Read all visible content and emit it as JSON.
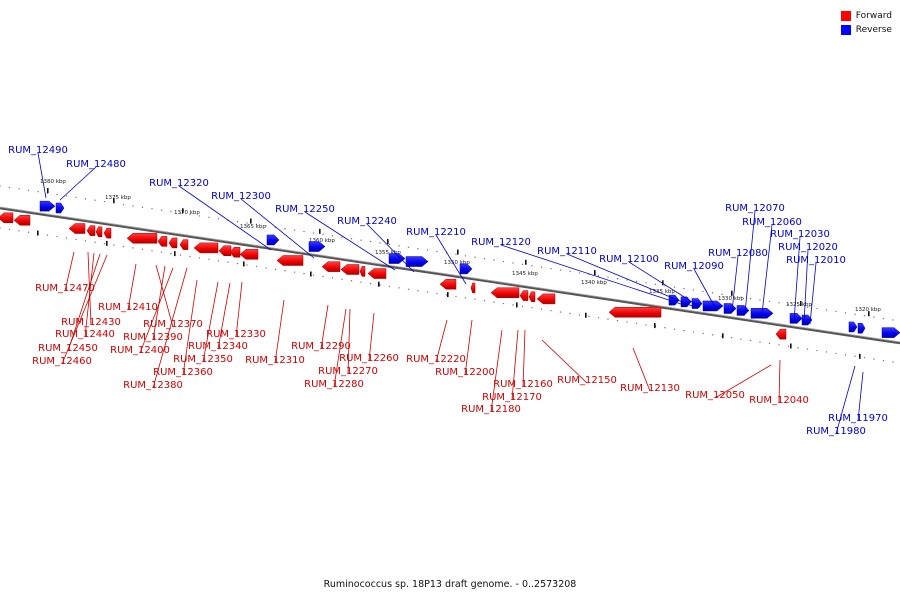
{
  "caption": "Ruminococcus sp. 18P13 draft genome. - 0..2573208",
  "legend": [
    {
      "label": "Forward",
      "color": "#ff0000"
    },
    {
      "label": "Reverse",
      "color": "#0000ff"
    }
  ],
  "colors": {
    "forward": "#ff0000",
    "reverse": "#0000ff",
    "backbone": "#888888"
  },
  "scale_labels": [
    "1380 kbp",
    "1375 kbp",
    "1370 kbp",
    "1365 kbp",
    "1360 kbp",
    "1355 kbp",
    "1350 kbp",
    "1345 kbp",
    "1340 kbp",
    "1335 kbp",
    "1330 kbp",
    "1325 kbp",
    "1320 kbp"
  ],
  "forward_genes": [
    "RUM_12470",
    "RUM_12410",
    "RUM_12430",
    "RUM_12370",
    "RUM_12440",
    "RUM_12390",
    "RUM_12330",
    "RUM_12450",
    "RUM_12400",
    "RUM_12340",
    "RUM_12460",
    "RUM_12350",
    "RUM_12310",
    "RUM_12360",
    "RUM_12380",
    "RUM_12290",
    "RUM_12260",
    "RUM_12270",
    "RUM_12280",
    "RUM_12220",
    "RUM_12200",
    "RUM_12160",
    "RUM_12150",
    "RUM_12170",
    "RUM_12180",
    "RUM_12130",
    "RUM_12050",
    "RUM_12040"
  ],
  "reverse_genes": [
    "RUM_12490",
    "RUM_12480",
    "RUM_12320",
    "RUM_12300",
    "RUM_12250",
    "RUM_12240",
    "RUM_12210",
    "RUM_12120",
    "RUM_12110",
    "RUM_12100",
    "RUM_12090",
    "RUM_12080",
    "RUM_12070",
    "RUM_12060",
    "RUM_12030",
    "RUM_12020",
    "RUM_12010",
    "RUM_11970",
    "RUM_11980"
  ]
}
